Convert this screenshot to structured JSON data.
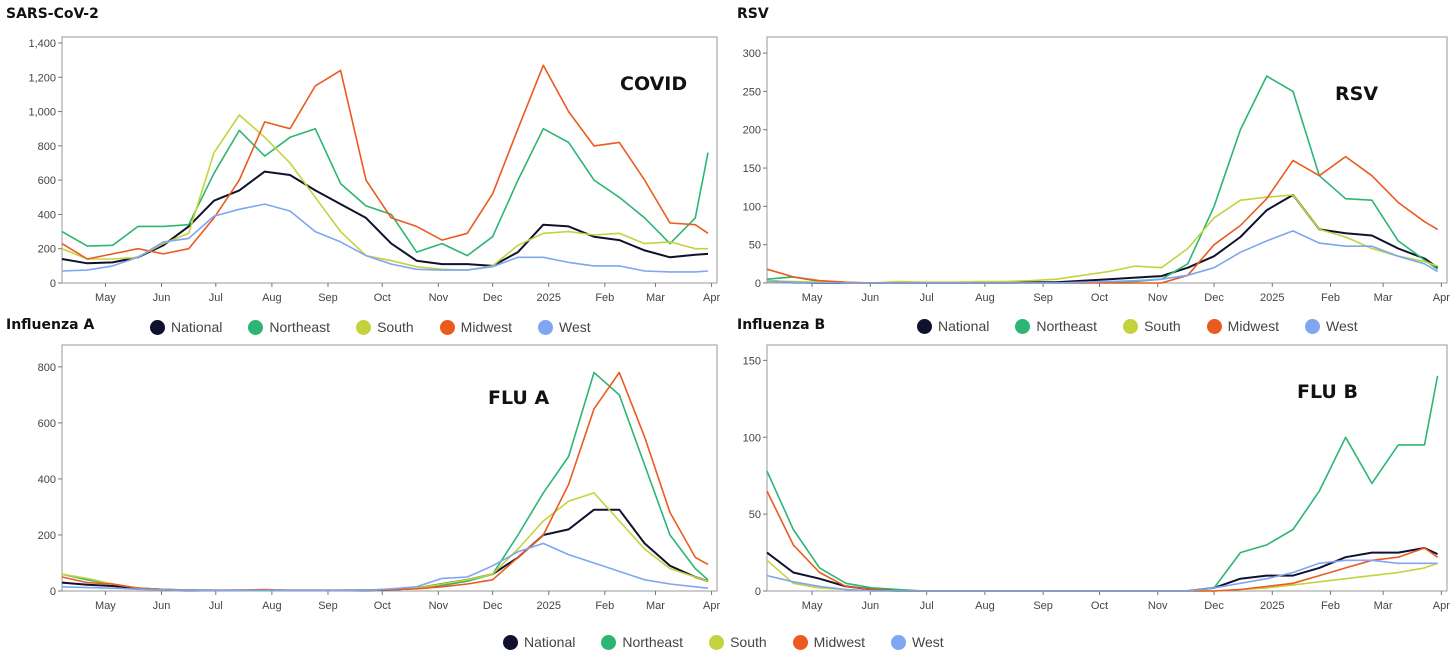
{
  "legend": [
    "National",
    "Northeast",
    "South",
    "Midwest",
    "West"
  ],
  "colors": {
    "National": "#10112e",
    "Northeast": "#2db573",
    "South": "#c4d33d",
    "Midwest": "#eb5a1f",
    "West": "#7fa6f0"
  },
  "chart_data": [
    {
      "type": "line",
      "title": "SARS-CoV-2",
      "annotation": "COVID",
      "ylim": [
        0,
        1435
      ],
      "yticks": [
        0,
        200,
        400,
        600,
        800,
        1000,
        1200,
        1400
      ],
      "ytick_labels": [
        "0",
        "200",
        "400",
        "600",
        "800",
        "1,000",
        "1,200",
        "1,400"
      ],
      "xlim": [
        0,
        362
      ],
      "x_unit": "days since Apr 7 2024",
      "xticks": [
        24,
        55,
        85,
        116,
        147,
        177,
        208,
        238,
        269,
        300,
        328,
        359
      ],
      "xtick_labels": [
        "May",
        "Jun",
        "Jul",
        "Aug",
        "Sep",
        "Oct",
        "Nov",
        "Dec",
        "2025",
        "Feb",
        "Mar",
        "Apr"
      ],
      "x": [
        0,
        14,
        28,
        42,
        56,
        70,
        84,
        98,
        112,
        126,
        140,
        154,
        168,
        182,
        196,
        210,
        224,
        238,
        252,
        266,
        280,
        294,
        308,
        322,
        336,
        350,
        357
      ],
      "series": [
        {
          "name": "National",
          "values": [
            140,
            115,
            120,
            150,
            220,
            330,
            480,
            540,
            650,
            630,
            540,
            460,
            380,
            230,
            130,
            110,
            110,
            100,
            180,
            340,
            330,
            270,
            250,
            190,
            150,
            165,
            170
          ]
        },
        {
          "name": "Northeast",
          "values": [
            300,
            215,
            220,
            330,
            330,
            340,
            640,
            890,
            740,
            850,
            900,
            580,
            450,
            400,
            180,
            230,
            160,
            270,
            600,
            900,
            820,
            600,
            500,
            380,
            230,
            380,
            760
          ]
        },
        {
          "name": "South",
          "values": [
            200,
            140,
            140,
            150,
            230,
            290,
            760,
            980,
            850,
            700,
            500,
            300,
            160,
            130,
            95,
            80,
            75,
            100,
            220,
            290,
            300,
            280,
            290,
            230,
            240,
            200,
            200
          ]
        },
        {
          "name": "Midwest",
          "values": [
            230,
            140,
            170,
            200,
            170,
            200,
            380,
            600,
            940,
            900,
            1150,
            1240,
            600,
            380,
            330,
            250,
            290,
            520,
            900,
            1270,
            1000,
            800,
            820,
            600,
            350,
            340,
            290
          ]
        },
        {
          "name": "West",
          "values": [
            70,
            75,
            100,
            150,
            240,
            260,
            390,
            430,
            460,
            420,
            300,
            240,
            160,
            110,
            80,
            75,
            75,
            95,
            150,
            150,
            120,
            100,
            100,
            70,
            65,
            65,
            70
          ]
        }
      ]
    },
    {
      "type": "line",
      "title": "RSV",
      "annotation": "RSV",
      "ylim": [
        0,
        321
      ],
      "yticks": [
        0,
        50,
        100,
        150,
        200,
        250,
        300
      ],
      "ytick_labels": [
        "0",
        "50",
        "100",
        "150",
        "200",
        "250",
        "300"
      ],
      "xlim": [
        0,
        362
      ],
      "x_unit": "days since Apr 7 2024",
      "xticks": [
        24,
        55,
        85,
        116,
        147,
        177,
        208,
        238,
        269,
        300,
        328,
        359
      ],
      "xtick_labels": [
        "May",
        "Jun",
        "Jul",
        "Aug",
        "Sep",
        "Oct",
        "Nov",
        "Dec",
        "2025",
        "Feb",
        "Mar",
        "Apr"
      ],
      "x": [
        0,
        14,
        28,
        42,
        56,
        70,
        84,
        98,
        112,
        126,
        140,
        154,
        168,
        182,
        196,
        210,
        224,
        238,
        252,
        266,
        280,
        294,
        308,
        322,
        336,
        350,
        357
      ],
      "series": [
        {
          "name": "National",
          "values": [
            3,
            1,
            0,
            0,
            0,
            0,
            0,
            0,
            0,
            0,
            1,
            1,
            3,
            5,
            7,
            9,
            20,
            35,
            60,
            95,
            115,
            70,
            65,
            62,
            45,
            32,
            20
          ]
        },
        {
          "name": "Northeast",
          "values": [
            5,
            8,
            2,
            0,
            0,
            0,
            0,
            0,
            0,
            0,
            0,
            0,
            0,
            1,
            2,
            5,
            25,
            100,
            200,
            270,
            250,
            140,
            110,
            108,
            55,
            30,
            18
          ]
        },
        {
          "name": "South",
          "values": [
            3,
            2,
            1,
            0,
            0,
            2,
            1,
            1,
            2,
            2,
            3,
            5,
            10,
            15,
            22,
            20,
            45,
            85,
            108,
            112,
            115,
            70,
            60,
            45,
            35,
            28,
            22
          ]
        },
        {
          "name": "Midwest",
          "values": [
            18,
            8,
            3,
            1,
            0,
            0,
            0,
            0,
            0,
            0,
            0,
            0,
            0,
            0,
            0,
            0,
            10,
            50,
            75,
            110,
            160,
            140,
            165,
            140,
            105,
            80,
            70
          ]
        },
        {
          "name": "West",
          "values": [
            2,
            1,
            0,
            0,
            0,
            0,
            0,
            0,
            0,
            0,
            0,
            0,
            1,
            2,
            3,
            5,
            10,
            20,
            40,
            55,
            68,
            52,
            48,
            48,
            35,
            25,
            15
          ]
        }
      ]
    },
    {
      "type": "line",
      "title": "Influenza A",
      "annotation": "FLU A",
      "ylim": [
        0,
        878
      ],
      "yticks": [
        0,
        200,
        400,
        600,
        800
      ],
      "ytick_labels": [
        "0",
        "200",
        "400",
        "600",
        "800"
      ],
      "xlim": [
        0,
        362
      ],
      "x_unit": "days since Apr 7 2024",
      "xticks": [
        24,
        55,
        85,
        116,
        147,
        177,
        208,
        238,
        269,
        300,
        328,
        359
      ],
      "xtick_labels": [
        "May",
        "Jun",
        "Jul",
        "Aug",
        "Sep",
        "Oct",
        "Nov",
        "Dec",
        "2025",
        "Feb",
        "Mar",
        "Apr"
      ],
      "x": [
        0,
        14,
        28,
        42,
        56,
        70,
        84,
        98,
        112,
        126,
        140,
        154,
        168,
        182,
        196,
        210,
        224,
        238,
        252,
        266,
        280,
        294,
        308,
        322,
        336,
        350,
        357
      ],
      "series": [
        {
          "name": "National",
          "values": [
            30,
            22,
            18,
            10,
            5,
            3,
            2,
            2,
            2,
            2,
            2,
            2,
            3,
            5,
            10,
            25,
            40,
            60,
            120,
            200,
            220,
            290,
            290,
            170,
            90,
            50,
            35
          ]
        },
        {
          "name": "Northeast",
          "values": [
            60,
            40,
            25,
            10,
            5,
            3,
            2,
            2,
            2,
            2,
            2,
            2,
            3,
            5,
            10,
            20,
            35,
            60,
            200,
            350,
            480,
            780,
            700,
            450,
            200,
            80,
            40
          ]
        },
        {
          "name": "South",
          "values": [
            60,
            45,
            25,
            10,
            5,
            3,
            2,
            2,
            2,
            2,
            2,
            2,
            3,
            5,
            10,
            25,
            40,
            60,
            150,
            250,
            320,
            350,
            250,
            150,
            80,
            50,
            35
          ]
        },
        {
          "name": "Midwest",
          "values": [
            50,
            30,
            25,
            10,
            5,
            3,
            2,
            3,
            5,
            2,
            2,
            2,
            3,
            5,
            8,
            15,
            25,
            40,
            120,
            200,
            380,
            650,
            780,
            550,
            280,
            120,
            95
          ]
        },
        {
          "name": "West",
          "values": [
            15,
            12,
            10,
            6,
            4,
            3,
            2,
            2,
            2,
            2,
            2,
            2,
            3,
            8,
            15,
            45,
            50,
            90,
            140,
            170,
            130,
            100,
            70,
            40,
            25,
            15,
            10
          ]
        }
      ]
    },
    {
      "type": "line",
      "title": "Influenza B",
      "annotation": "FLU B",
      "ylim": [
        0,
        160
      ],
      "yticks": [
        0,
        50,
        100,
        150
      ],
      "ytick_labels": [
        "0",
        "50",
        "100",
        "150"
      ],
      "xlim": [
        0,
        362
      ],
      "x_unit": "days since Apr 7 2024",
      "xticks": [
        24,
        55,
        85,
        116,
        147,
        177,
        208,
        238,
        269,
        300,
        328,
        359
      ],
      "xtick_labels": [
        "May",
        "Jun",
        "Jul",
        "Aug",
        "Sep",
        "Oct",
        "Nov",
        "Dec",
        "2025",
        "Feb",
        "Mar",
        "Apr"
      ],
      "x": [
        0,
        14,
        28,
        42,
        56,
        70,
        84,
        98,
        112,
        126,
        140,
        154,
        168,
        182,
        196,
        210,
        224,
        238,
        252,
        266,
        280,
        294,
        308,
        322,
        336,
        350,
        357
      ],
      "series": [
        {
          "name": "National",
          "values": [
            25,
            12,
            8,
            3,
            1,
            0,
            0,
            0,
            0,
            0,
            0,
            0,
            0,
            0,
            0,
            0,
            0,
            2,
            8,
            10,
            10,
            15,
            22,
            25,
            25,
            28,
            24
          ]
        },
        {
          "name": "Northeast",
          "values": [
            78,
            40,
            15,
            5,
            2,
            1,
            0,
            0,
            0,
            0,
            0,
            0,
            0,
            0,
            0,
            0,
            0,
            2,
            25,
            30,
            40,
            65,
            100,
            70,
            95,
            95,
            140
          ]
        },
        {
          "name": "South",
          "values": [
            20,
            5,
            2,
            1,
            0,
            0,
            0,
            0,
            0,
            0,
            0,
            0,
            0,
            0,
            0,
            0,
            0,
            0,
            1,
            2,
            4,
            6,
            8,
            10,
            12,
            15,
            18
          ]
        },
        {
          "name": "Midwest",
          "values": [
            65,
            30,
            12,
            3,
            1,
            0,
            0,
            0,
            0,
            0,
            0,
            0,
            0,
            0,
            0,
            0,
            0,
            0,
            1,
            3,
            5,
            10,
            15,
            20,
            22,
            28,
            22
          ]
        },
        {
          "name": "West",
          "values": [
            10,
            6,
            3,
            1,
            0,
            0,
            0,
            0,
            0,
            0,
            0,
            0,
            0,
            0,
            0,
            0,
            0,
            2,
            5,
            8,
            12,
            18,
            20,
            20,
            18,
            18,
            18
          ]
        }
      ]
    }
  ]
}
